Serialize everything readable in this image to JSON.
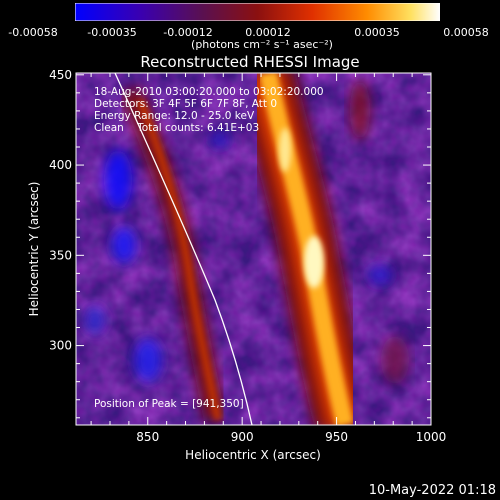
{
  "colorbar": {
    "ticks": [
      "-0.00058",
      "-0.00035",
      "-0.00012",
      "0.00012",
      "0.00035",
      "0.00058"
    ],
    "label": "(photons cm⁻² s⁻¹ asec⁻²)",
    "colors": [
      "#0000ff",
      "#4b0082",
      "#b22222",
      "#ff4500",
      "#ffa500",
      "#ffffff"
    ]
  },
  "chart_data": {
    "type": "heatmap",
    "title": "Reconstructed RHESSI Image",
    "xlabel": "Heliocentric X (arcsec)",
    "ylabel": "Heliocentric Y (arcsec)",
    "xlim": [
      812,
      1000
    ],
    "ylim": [
      256,
      451
    ],
    "x_ticks": [
      "850",
      "900",
      "950",
      "1000"
    ],
    "y_ticks": [
      "300",
      "350",
      "400",
      "450"
    ],
    "annotations": [
      "18-Aug-2010 03:00:20.000 to 03:02:20.000",
      "Detectors: 3F 4F 5F 6F 7F 8F, Att 0",
      "Energy Range: 12.0 - 25.0 keV",
      "Clean    Total counts: 6.41E+03"
    ],
    "peak_label": "Position of Peak = [941,350]",
    "peak": [
      941,
      350
    ],
    "limb_color": "#ffffff"
  },
  "footer": {
    "timestamp": "10-May-2022 01:18"
  }
}
